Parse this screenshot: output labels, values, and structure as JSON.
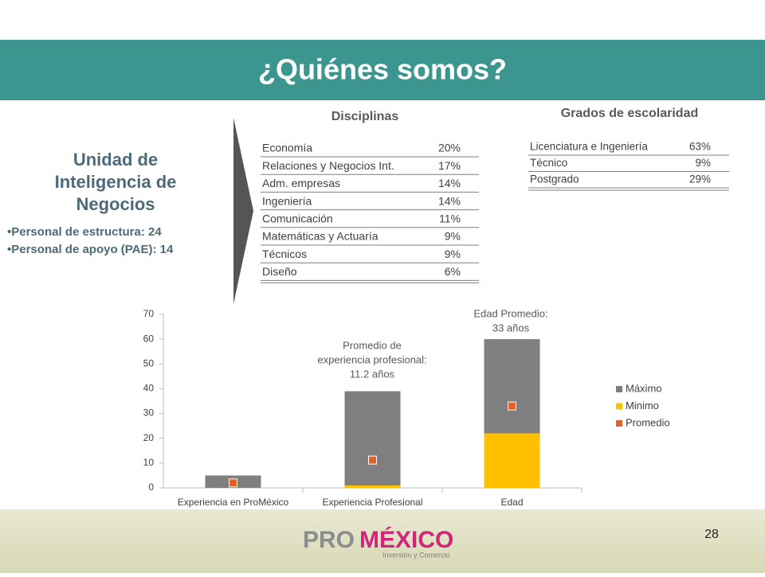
{
  "header": {
    "title": "¿Quiénes somos?"
  },
  "unit": {
    "title_lines": [
      "Unidad de",
      "Inteligencia de",
      "Negocios"
    ],
    "bullets": [
      "•Personal de estructura: 24",
      "•Personal de apoyo (PAE): 14"
    ]
  },
  "disciplinas": {
    "title": "Disciplinas",
    "rows": [
      [
        "Economía",
        "20%"
      ],
      [
        "Relaciones y Negocios Int.",
        "17%"
      ],
      [
        "Adm. empresas",
        "14%"
      ],
      [
        "Ingeniería",
        "14%"
      ],
      [
        "Comunicación",
        "11%"
      ],
      [
        "Matemáticas y Actuaría",
        "9%"
      ],
      [
        "Técnicos",
        "9%"
      ],
      [
        "Diseño",
        "6%"
      ]
    ]
  },
  "grados": {
    "title": "Grados de escolaridad",
    "rows": [
      [
        "Licenciatura e Ingeniería",
        "63%"
      ],
      [
        "Técnico",
        "9%"
      ],
      [
        "Postgrado",
        "29%"
      ]
    ]
  },
  "chart_data": {
    "type": "bar",
    "categories": [
      "Experiencia en ProMéxico",
      "Experiencia Profesional",
      "Edad"
    ],
    "series": [
      {
        "name": "Máximo",
        "color": "#7f7f7f",
        "values": [
          5,
          39,
          60
        ]
      },
      {
        "name": "Minimo",
        "color": "#ffc000",
        "values": [
          0,
          1,
          22
        ]
      },
      {
        "name": "Promedio",
        "color": "#e0622a",
        "values": [
          2,
          11.2,
          33
        ],
        "marker": "square"
      }
    ],
    "ylim": [
      0,
      70
    ],
    "yticks": [
      0,
      10,
      20,
      30,
      40,
      50,
      60,
      70
    ],
    "annotations": [
      {
        "lines": [
          "Promedio de",
          "experiencia profesional:",
          "11.2   años"
        ]
      },
      {
        "lines": [
          "Edad Promedio:",
          "33 años"
        ]
      }
    ],
    "legend": "right"
  },
  "footer": {
    "logo_pro": "PRO",
    "logo_mexico": "MÉXICO",
    "tagline": "Inversión y Comercio",
    "page": "28"
  }
}
